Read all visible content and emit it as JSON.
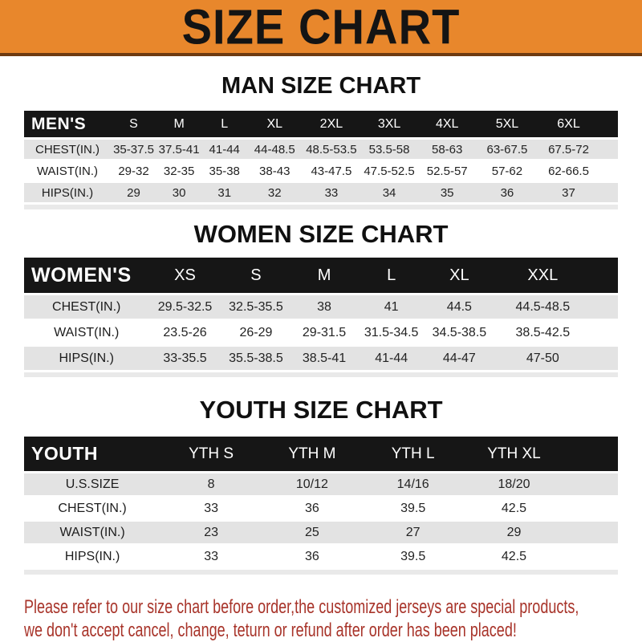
{
  "banner": {
    "title": "SIZE CHART",
    "bg_color": "#E8872C",
    "text_color": "#141414"
  },
  "colors": {
    "header_band": "#161616",
    "row_gray": "#E3E3E3",
    "footer_red": "#A8342A"
  },
  "sections": [
    {
      "heading": "MAN SIZE CHART",
      "table": {
        "columns": [
          "MEN'S",
          "S",
          "M",
          "L",
          "XL",
          "2XL",
          "3XL",
          "4XL",
          "5XL",
          "6XL"
        ],
        "rows": [
          {
            "label": "CHEST(IN.)",
            "values": [
              "35-37.5",
              "37.5-41",
              "41-44",
              "44-48.5",
              "48.5-53.5",
              "53.5-58",
              "58-63",
              "63-67.5",
              "67.5-72"
            ]
          },
          {
            "label": "WAIST(IN.)",
            "values": [
              "29-32",
              "32-35",
              "35-38",
              "38-43",
              "43-47.5",
              "47.5-52.5",
              "52.5-57",
              "57-62",
              "62-66.5"
            ]
          },
          {
            "label": "HIPS(IN.)",
            "values": [
              "29",
              "30",
              "31",
              "32",
              "33",
              "34",
              "35",
              "36",
              "37"
            ]
          }
        ]
      }
    },
    {
      "heading": "WOMEN SIZE CHART",
      "table": {
        "columns": [
          "WOMEN'S",
          "XS",
          "S",
          "M",
          "L",
          "XL",
          "XXL"
        ],
        "rows": [
          {
            "label": "CHEST(IN.)",
            "values": [
              "29.5-32.5",
              "32.5-35.5",
              "38",
              "41",
              "44.5",
              "44.5-48.5"
            ]
          },
          {
            "label": "WAIST(IN.)",
            "values": [
              "23.5-26",
              "26-29",
              "29-31.5",
              "31.5-34.5",
              "34.5-38.5",
              "38.5-42.5"
            ]
          },
          {
            "label": "HIPS(IN.)",
            "values": [
              "33-35.5",
              "35.5-38.5",
              "38.5-41",
              "41-44",
              "44-47",
              "47-50"
            ]
          }
        ]
      }
    },
    {
      "heading": "YOUTH SIZE CHART",
      "table": {
        "columns": [
          "YOUTH",
          "YTH S",
          "YTH M",
          "YTH L",
          "YTH XL"
        ],
        "rows": [
          {
            "label": "U.S.SIZE",
            "values": [
              "8",
              "10/12",
              "14/16",
              "18/20"
            ]
          },
          {
            "label": "CHEST(IN.)",
            "values": [
              "33",
              "36",
              "39.5",
              "42.5"
            ]
          },
          {
            "label": "WAIST(IN.)",
            "values": [
              "23",
              "25",
              "27",
              "29"
            ]
          },
          {
            "label": "HIPS(IN.)",
            "values": [
              "33",
              "36",
              "39.5",
              "42.5"
            ]
          }
        ]
      }
    }
  ],
  "footer": {
    "line1": "Please refer to our size chart before order,the customized jerseys are special products,",
    "line2": "we don't accept cancel, change, teturn or refund after order has been placed!"
  }
}
